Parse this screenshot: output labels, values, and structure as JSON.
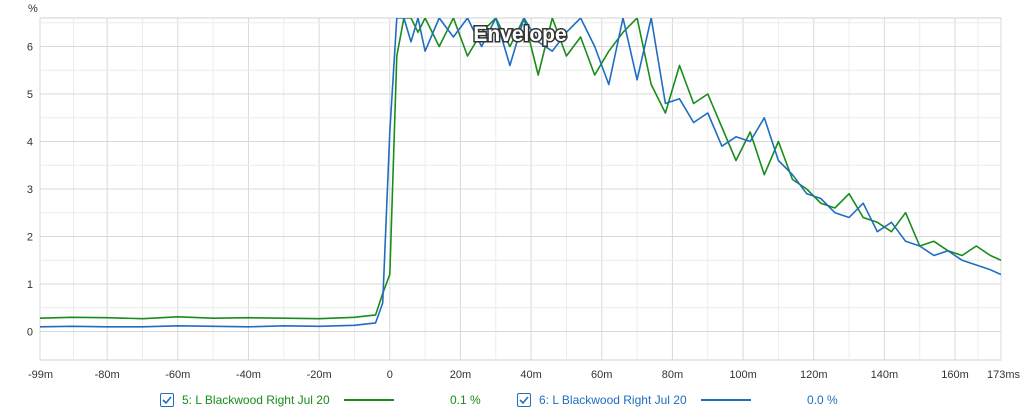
{
  "chart_data": {
    "type": "line",
    "title": "Envelope",
    "ylabel": "%",
    "xlabel": "",
    "xlim": [
      -99,
      173
    ],
    "ylim": [
      -0.6,
      6.6
    ],
    "x_ticks": [
      {
        "v": -99,
        "label": "-99m"
      },
      {
        "v": -80,
        "label": "-80m"
      },
      {
        "v": -60,
        "label": "-60m"
      },
      {
        "v": -40,
        "label": "-40m"
      },
      {
        "v": -20,
        "label": "-20m"
      },
      {
        "v": 0,
        "label": "0"
      },
      {
        "v": 20,
        "label": "20m"
      },
      {
        "v": 40,
        "label": "40m"
      },
      {
        "v": 60,
        "label": "60m"
      },
      {
        "v": 80,
        "label": "80m"
      },
      {
        "v": 100,
        "label": "100m"
      },
      {
        "v": 120,
        "label": "120m"
      },
      {
        "v": 140,
        "label": "140m"
      },
      {
        "v": 160,
        "label": "160m"
      },
      {
        "v": 173,
        "label": "173ms"
      }
    ],
    "y_ticks": [
      {
        "v": 0,
        "label": "0"
      },
      {
        "v": 1,
        "label": "1"
      },
      {
        "v": 2,
        "label": "2"
      },
      {
        "v": 3,
        "label": "3"
      },
      {
        "v": 4,
        "label": "4"
      },
      {
        "v": 5,
        "label": "5"
      },
      {
        "v": 6,
        "label": "6"
      }
    ],
    "grid": true,
    "legend_position": "bottom",
    "series": [
      {
        "name": "5: L Blackwood Right Jul 20",
        "value": "0.1 %",
        "color": "#1a8c1a",
        "x": [
          -99,
          -90,
          -80,
          -70,
          -60,
          -50,
          -40,
          -30,
          -20,
          -10,
          -4,
          -2,
          0,
          2,
          4,
          6,
          8,
          10,
          14,
          18,
          22,
          26,
          30,
          34,
          38,
          42,
          46,
          50,
          54,
          58,
          62,
          66,
          70,
          74,
          78,
          82,
          86,
          90,
          94,
          98,
          102,
          106,
          110,
          114,
          118,
          122,
          126,
          130,
          134,
          138,
          142,
          146,
          150,
          154,
          158,
          162,
          166,
          170,
          173
        ],
        "y": [
          0.28,
          0.3,
          0.29,
          0.27,
          0.31,
          0.28,
          0.29,
          0.28,
          0.27,
          0.3,
          0.35,
          0.8,
          1.2,
          5.8,
          6.6,
          6.6,
          6.3,
          6.6,
          6.0,
          6.6,
          5.8,
          6.3,
          6.6,
          6.0,
          6.6,
          5.4,
          6.6,
          5.8,
          6.2,
          5.4,
          5.9,
          6.3,
          6.6,
          5.2,
          4.6,
          5.6,
          4.8,
          5.0,
          4.3,
          3.6,
          4.2,
          3.3,
          4.0,
          3.2,
          3.0,
          2.7,
          2.6,
          2.9,
          2.4,
          2.3,
          2.1,
          2.5,
          1.8,
          1.9,
          1.7,
          1.6,
          1.8,
          1.6,
          1.5
        ]
      },
      {
        "name": "6: L Blackwood Right Jul 20",
        "value": "0.0 %",
        "color": "#1f6dc1",
        "x": [
          -99,
          -90,
          -80,
          -70,
          -60,
          -50,
          -40,
          -30,
          -20,
          -10,
          -4,
          -2,
          0,
          2,
          4,
          6,
          8,
          10,
          14,
          18,
          22,
          26,
          30,
          34,
          38,
          42,
          46,
          50,
          54,
          58,
          62,
          66,
          70,
          74,
          78,
          82,
          86,
          90,
          94,
          98,
          102,
          106,
          110,
          114,
          118,
          122,
          126,
          130,
          134,
          138,
          142,
          146,
          150,
          154,
          158,
          162,
          166,
          170,
          173
        ],
        "y": [
          0.1,
          0.11,
          0.1,
          0.1,
          0.12,
          0.11,
          0.1,
          0.12,
          0.11,
          0.13,
          0.18,
          0.6,
          4.2,
          6.6,
          6.6,
          6.1,
          6.6,
          5.9,
          6.6,
          6.2,
          6.6,
          6.0,
          6.6,
          5.6,
          6.6,
          6.1,
          5.9,
          6.3,
          6.6,
          6.0,
          5.2,
          6.6,
          5.3,
          6.6,
          4.8,
          4.9,
          4.4,
          4.6,
          3.9,
          4.1,
          4.0,
          4.5,
          3.6,
          3.3,
          2.9,
          2.8,
          2.5,
          2.4,
          2.7,
          2.1,
          2.3,
          1.9,
          1.8,
          1.6,
          1.7,
          1.5,
          1.4,
          1.3,
          1.2
        ]
      }
    ]
  }
}
